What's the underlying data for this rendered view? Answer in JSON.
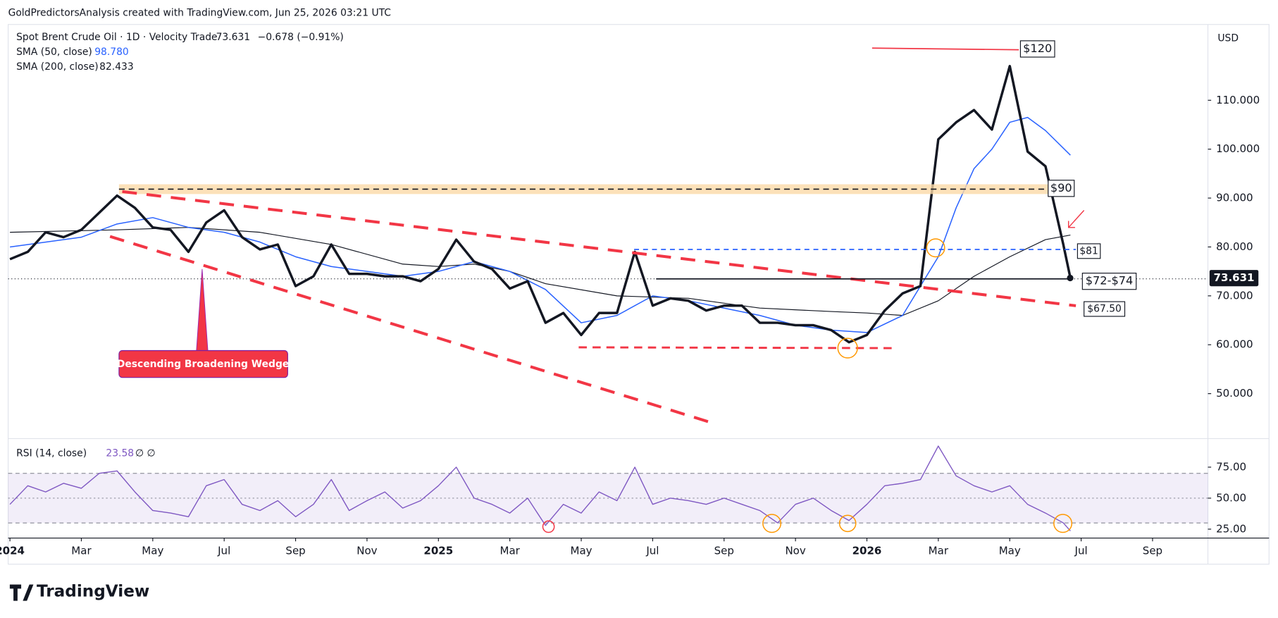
{
  "header": {
    "title": "GoldPredictorsAnalysis created with TradingView.com, Jun 25, 2026 03:21 UTC",
    "logo": "TradingView"
  },
  "chart_data": [
    {
      "type": "line",
      "title": "Spot Brent Crude Oil · 1D · Velocity Trade",
      "last": "73.631",
      "change": "−0.678 (−0.91%)",
      "currency": "USD",
      "xlim": [
        -0.05,
        33.55
      ],
      "ylim": [
        40.8,
        125.5
      ],
      "xticks": [
        {
          "value": 0,
          "label": "2024"
        },
        {
          "value": 2,
          "label": "Mar"
        },
        {
          "value": 4,
          "label": "May"
        },
        {
          "value": 6,
          "label": "Jul"
        },
        {
          "value": 8,
          "label": "Sep"
        },
        {
          "value": 10,
          "label": "Nov"
        },
        {
          "value": 12,
          "label": "2025"
        },
        {
          "value": 14,
          "label": "Mar"
        },
        {
          "value": 16,
          "label": "May"
        },
        {
          "value": 18,
          "label": "Jul"
        },
        {
          "value": 20,
          "label": "Sep"
        },
        {
          "value": 22,
          "label": "Nov"
        },
        {
          "value": 24,
          "label": "2026"
        },
        {
          "value": 26,
          "label": "Mar"
        },
        {
          "value": 28,
          "label": "May"
        },
        {
          "value": 30,
          "label": "Jul"
        },
        {
          "value": 32,
          "label": "Sep"
        }
      ],
      "yticks": [
        {
          "value": 50,
          "label": "50.000"
        },
        {
          "value": 60,
          "label": "60.000"
        },
        {
          "value": 70,
          "label": "70.000"
        },
        {
          "value": 80,
          "label": "80.000"
        },
        {
          "value": 90,
          "label": "90.000"
        },
        {
          "value": 100,
          "label": "100.000"
        },
        {
          "value": 110,
          "label": "110.000"
        }
      ],
      "series": [
        {
          "color": "#131722",
          "width": 3,
          "x": [
            0,
            0.5,
            1,
            1.5,
            2,
            2.5,
            3,
            3.5,
            4,
            4.5,
            5,
            5.5,
            6,
            6.5,
            7,
            7.5,
            8,
            8.5,
            9,
            9.5,
            10,
            10.5,
            11,
            11.5,
            12,
            12.5,
            13,
            13.5,
            14,
            14.5,
            15,
            15.5,
            16,
            16.5,
            17,
            17.5,
            18,
            18.5,
            19,
            19.5,
            20,
            20.5,
            21,
            21.5,
            22,
            22.5,
            23,
            23.5,
            24,
            24.5,
            25,
            25.5,
            26,
            26.5,
            27,
            27.5,
            28,
            28.5,
            29,
            29.5,
            29.7
          ],
          "values": [
            77.5,
            79,
            83,
            82,
            83.5,
            87,
            90.5,
            88,
            84,
            83.5,
            79,
            85,
            87.5,
            82,
            79.5,
            80.5,
            72,
            74,
            80.5,
            74.5,
            74.5,
            74,
            74,
            73,
            75.5,
            81.5,
            77,
            75.5,
            71.5,
            73,
            64.5,
            66.5,
            62,
            66.5,
            66.5,
            79,
            68,
            69.5,
            69,
            67,
            68,
            68,
            64.5,
            64.5,
            64,
            64,
            63,
            60.5,
            62,
            67,
            70.5,
            72,
            102,
            105.5,
            108,
            104,
            117,
            99.5,
            96.5,
            80.5,
            73.631
          ]
        },
        {
          "name": "SMA (50, close)",
          "legend_value": "98.780",
          "color": "#2962ff",
          "width": 1.3,
          "x": [
            0,
            2,
            3,
            4,
            5,
            6,
            7,
            8,
            9,
            10,
            11,
            12,
            13,
            14,
            15,
            16,
            17,
            18,
            19,
            20,
            21,
            22,
            23,
            24,
            25,
            26,
            26.5,
            27,
            27.5,
            28,
            28.5,
            29,
            29.7
          ],
          "values": [
            80,
            82,
            84.7,
            86,
            84,
            83,
            81,
            78,
            76,
            75,
            74,
            75,
            77,
            75,
            71.3,
            64.5,
            66,
            70,
            69,
            67.5,
            66,
            64,
            63,
            62.5,
            66,
            78,
            88,
            96,
            100,
            105.5,
            106.5,
            103.8,
            98.78
          ]
        },
        {
          "name": "SMA (200, close)",
          "legend_value": "82.433",
          "color": "#131722",
          "width": 1,
          "x": [
            0,
            3,
            5,
            7,
            9,
            11,
            12,
            13,
            14,
            15,
            17,
            19,
            21,
            23,
            24,
            25,
            26,
            27,
            28,
            29,
            29.7
          ],
          "values": [
            83,
            83.5,
            84,
            83,
            80.5,
            76.5,
            76,
            76.5,
            75,
            72.5,
            70,
            69.5,
            67.5,
            66.8,
            66.5,
            66,
            69,
            74,
            78,
            81.5,
            82.433
          ]
        }
      ],
      "annotations": [
        {
          "text": "$120"
        },
        {
          "text": "$90"
        },
        {
          "text": "$81"
        },
        {
          "text": "$72-$74"
        },
        {
          "text": "$67.50"
        },
        {
          "text": "Descending Broadening Wedge"
        }
      ]
    },
    {
      "type": "line",
      "title": "RSI (14, close)",
      "extra": "∅ ∅",
      "xlim": [
        -0.05,
        33.55
      ],
      "ylim": [
        17.8,
        96.7
      ],
      "yticks": [
        {
          "value": 25,
          "label": "25.00"
        },
        {
          "value": 50,
          "label": "50.00"
        },
        {
          "value": 75,
          "label": "75.00"
        }
      ],
      "bands": [
        30,
        50,
        70
      ],
      "series": [
        {
          "name": "RSI (14, close)",
          "legend_value": "23.58",
          "color": "#7e57c2",
          "width": 1.2,
          "x": [
            0,
            0.5,
            1,
            1.5,
            2,
            2.5,
            3,
            3.5,
            4,
            4.5,
            5,
            5.5,
            6,
            6.5,
            7,
            7.5,
            8,
            8.5,
            9,
            9.5,
            10,
            10.5,
            11,
            11.5,
            12,
            12.5,
            13,
            13.5,
            14,
            14.5,
            15,
            15.5,
            16,
            16.5,
            17,
            17.5,
            18,
            18.5,
            19,
            19.5,
            20,
            20.5,
            21,
            21.5,
            22,
            22.5,
            23,
            23.5,
            24,
            24.5,
            25,
            25.5,
            26,
            26.5,
            27,
            27.5,
            28,
            28.5,
            29,
            29.5,
            29.7
          ],
          "values": [
            45,
            60,
            55,
            62,
            58,
            70,
            72,
            55,
            40,
            38,
            35,
            60,
            65,
            45,
            40,
            48,
            35,
            45,
            65,
            40,
            48,
            55,
            42,
            48,
            60,
            75,
            50,
            45,
            38,
            50,
            28,
            45,
            38,
            55,
            48,
            75,
            45,
            50,
            48,
            45,
            50,
            45,
            40,
            30,
            45,
            50,
            40,
            32,
            45,
            60,
            62,
            65,
            92,
            68,
            60,
            55,
            60,
            45,
            38,
            30,
            23.58
          ]
        }
      ]
    }
  ]
}
